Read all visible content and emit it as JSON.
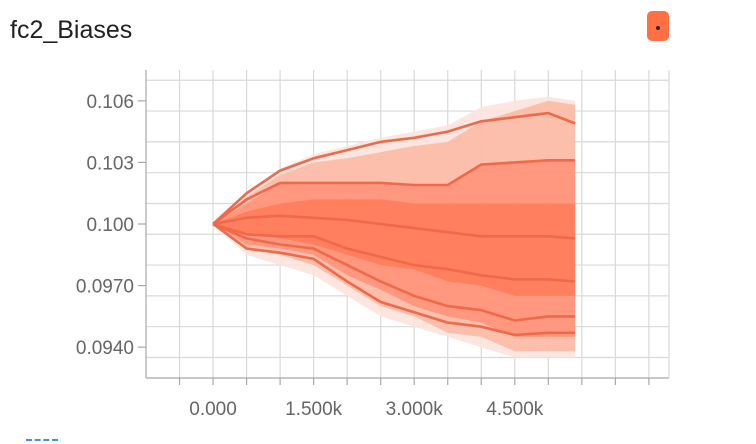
{
  "card": {
    "title": "fc2_Biases",
    "expand_icon": "more-icon"
  },
  "colors": {
    "accent": "#ff7043",
    "band_outer": "#fde3dc",
    "band_mid": "#fbb7a3",
    "band_inner": "#ff9075",
    "band_core": "#ff7a58",
    "line": "#f0694a",
    "footer_marks": "#4a90e2"
  },
  "chart_data": {
    "type": "area",
    "title": "fc2_Biases",
    "xlabel": "",
    "ylabel": "",
    "xlim": [
      -1000,
      6800
    ],
    "ylim": [
      0.0925,
      0.1075
    ],
    "x_ticks": [
      "0.000",
      "1.500k",
      "3.000k",
      "4.500k"
    ],
    "x_tick_values": [
      0,
      1500,
      3000,
      4500
    ],
    "y_ticks": [
      "0.106",
      "0.103",
      "0.100",
      "0.0970",
      "0.0940"
    ],
    "y_tick_values": [
      0.106,
      0.103,
      0.1,
      0.097,
      0.094
    ],
    "grid": true,
    "x": [
      0,
      500,
      1000,
      1500,
      2000,
      2500,
      3000,
      3500,
      4000,
      4500,
      5000,
      5400
    ],
    "bands": [
      {
        "lower": [
          0.1,
          0.0985,
          0.098,
          0.0975,
          0.0965,
          0.0955,
          0.095,
          0.0945,
          0.094,
          0.0935,
          0.0935,
          0.0935
        ],
        "upper": [
          0.1,
          0.1015,
          0.1027,
          0.1034,
          0.1038,
          0.1042,
          0.1045,
          0.1048,
          0.1057,
          0.106,
          0.1062,
          0.106
        ]
      },
      {
        "lower": [
          0.1,
          0.0988,
          0.0985,
          0.098,
          0.097,
          0.096,
          0.0955,
          0.0947,
          0.0945,
          0.0938,
          0.0938,
          0.0938
        ],
        "upper": [
          0.1,
          0.1013,
          0.1024,
          0.103,
          0.1032,
          0.1035,
          0.1038,
          0.104,
          0.105,
          0.1055,
          0.106,
          0.1058
        ]
      },
      {
        "lower": [
          0.1,
          0.099,
          0.0988,
          0.0985,
          0.0975,
          0.0968,
          0.096,
          0.0955,
          0.0952,
          0.0945,
          0.0945,
          0.0945
        ],
        "upper": [
          0.1,
          0.101,
          0.102,
          0.102,
          0.102,
          0.102,
          0.1019,
          0.1019,
          0.1029,
          0.103,
          0.1031,
          0.1031
        ]
      },
      {
        "lower": [
          0.1,
          0.0995,
          0.0993,
          0.099,
          0.0985,
          0.098,
          0.0978,
          0.0972,
          0.097,
          0.0965,
          0.0965,
          0.0965
        ],
        "upper": [
          0.1,
          0.1006,
          0.101,
          0.1012,
          0.1012,
          0.1012,
          0.101,
          0.101,
          0.101,
          0.101,
          0.101,
          0.101
        ]
      }
    ],
    "series": [
      {
        "values": [
          0.1,
          0.1015,
          0.1026,
          0.1032,
          0.1036,
          0.104,
          0.1042,
          0.1045,
          0.105,
          0.1052,
          0.1054,
          0.1049
        ]
      },
      {
        "values": [
          0.1,
          0.1012,
          0.102,
          0.102,
          0.102,
          0.102,
          0.1019,
          0.1019,
          0.1029,
          0.103,
          0.1031,
          0.1031
        ]
      },
      {
        "values": [
          0.1,
          0.1003,
          0.1004,
          0.1003,
          0.1002,
          0.1,
          0.0998,
          0.0996,
          0.0994,
          0.0994,
          0.0994,
          0.0993
        ]
      },
      {
        "values": [
          0.1,
          0.0995,
          0.0994,
          0.0994,
          0.0988,
          0.0984,
          0.098,
          0.0978,
          0.0975,
          0.0973,
          0.0973,
          0.0972
        ]
      },
      {
        "values": [
          0.1,
          0.0993,
          0.099,
          0.0988,
          0.098,
          0.0972,
          0.0965,
          0.096,
          0.0958,
          0.0953,
          0.0955,
          0.0955
        ]
      },
      {
        "values": [
          0.1,
          0.0988,
          0.0986,
          0.0983,
          0.0972,
          0.0962,
          0.0957,
          0.0952,
          0.095,
          0.0946,
          0.0947,
          0.0947
        ]
      }
    ]
  }
}
